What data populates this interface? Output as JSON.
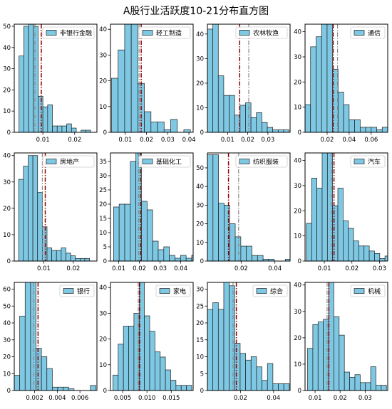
{
  "title": "A股行业活跃度10-21分布直方图",
  "colors": {
    "bar_fill": "#7ec8e3",
    "bar_edge": "#1f1f1f",
    "red_line": "#8b0000",
    "gray_line": "#808080",
    "legend_patch": "#7ec8e3"
  },
  "chart_data": [
    {
      "type": "histogram",
      "legend": "非银行金融",
      "xlim": [
        0.001,
        0.027
      ],
      "ylim": [
        0,
        51
      ],
      "xticks": [
        0.01,
        0.02
      ],
      "xtick_labels": [
        "0.01",
        "0.02"
      ],
      "yticks": [
        0,
        10,
        20,
        30,
        40,
        50
      ],
      "bin_start": 0.0025,
      "bin_width": 0.0015,
      "values": [
        36,
        50,
        51,
        50,
        17,
        12,
        13,
        3,
        3,
        3,
        4,
        2,
        0,
        1,
        1
      ],
      "red_line": 0.0095,
      "gray_line": 0.0075
    },
    {
      "type": "histogram",
      "legend": "轻工制造",
      "xlim": [
        0.003,
        0.042
      ],
      "ylim": [
        0,
        42
      ],
      "xticks": [
        0.01,
        0.02,
        0.03,
        0.04
      ],
      "xtick_labels": [
        "0.01",
        "0.02",
        "0.03",
        "0.04"
      ],
      "yticks": [
        0,
        10,
        20,
        30,
        40
      ],
      "bin_start": 0.0035,
      "bin_width": 0.0031,
      "values": [
        21,
        32,
        42,
        42,
        19,
        8,
        4,
        4,
        1,
        5,
        0,
        1,
        0
      ],
      "red_line": 0.0175,
      "gray_line": 0.0165
    },
    {
      "type": "histogram",
      "legend": "农林牧渔",
      "xlim": [
        0.0,
        0.041
      ],
      "ylim": [
        0,
        44
      ],
      "xticks": [
        0.01,
        0.02,
        0.03
      ],
      "xtick_labels": [
        "0.01",
        "0.02",
        "0.03"
      ],
      "yticks": [
        0,
        10,
        20,
        30,
        40
      ],
      "bin_start": 0.0,
      "bin_width": 0.0027,
      "values": [
        42,
        44,
        23,
        15,
        15,
        7,
        11,
        12,
        6,
        8,
        4,
        2,
        1,
        1,
        1
      ],
      "red_line": 0.016,
      "gray_line": 0.0205
    },
    {
      "type": "histogram",
      "legend": "通信",
      "xlim": [
        0.0,
        0.075
      ],
      "ylim": [
        0,
        43
      ],
      "xticks": [
        0.02,
        0.04,
        0.06
      ],
      "xtick_labels": [
        "0.02",
        "0.04",
        "0.06"
      ],
      "yticks": [
        0,
        10,
        20,
        30,
        40
      ],
      "bin_start": 0.0,
      "bin_width": 0.005,
      "values": [
        11,
        34,
        38,
        43,
        43,
        25,
        16,
        11,
        5,
        5,
        2,
        2,
        2,
        1,
        2
      ],
      "red_line": 0.0255,
      "gray_line": 0.0295
    },
    {
      "type": "histogram",
      "legend": "房地产",
      "xlim": [
        0.0,
        0.028
      ],
      "ylim": [
        0,
        41
      ],
      "xticks": [
        0.01,
        0.02
      ],
      "xtick_labels": [
        "0.01",
        "0.02"
      ],
      "yticks": [
        0,
        10,
        20,
        30,
        40
      ],
      "bin_start": 0.0015,
      "bin_width": 0.0016,
      "values": [
        31,
        36,
        40,
        40,
        26,
        13,
        5,
        4,
        4,
        5,
        3,
        2,
        1,
        1,
        1
      ],
      "red_line": 0.0105,
      "gray_line": 0.0095
    },
    {
      "type": "histogram",
      "legend": "基础化工",
      "xlim": [
        0.006,
        0.046
      ],
      "ylim": [
        0,
        38
      ],
      "xticks": [
        0.01,
        0.02,
        0.03,
        0.04
      ],
      "xtick_labels": [
        "0.01",
        "0.02",
        "0.03",
        "0.04"
      ],
      "yticks": [
        0,
        5,
        10,
        15,
        20,
        25,
        30,
        35
      ],
      "bin_start": 0.0075,
      "bin_width": 0.0027,
      "values": [
        19,
        20,
        20,
        35,
        38,
        21,
        18,
        7,
        4,
        5,
        2,
        1,
        2,
        1,
        2
      ],
      "red_line": 0.0205,
      "gray_line": 0.0195
    },
    {
      "type": "histogram",
      "legend": "纺织服装",
      "xlim": [
        0.0,
        0.049
      ],
      "ylim": [
        0,
        58
      ],
      "xticks": [
        0.02,
        0.04
      ],
      "xtick_labels": [
        "0.02",
        "0.04"
      ],
      "yticks": [
        0,
        10,
        20,
        30,
        40,
        50
      ],
      "bin_start": 0.0,
      "bin_width": 0.0033,
      "values": [
        57,
        57,
        31,
        30,
        20,
        13,
        8,
        8,
        3,
        3,
        1,
        1,
        0,
        0,
        1
      ],
      "red_line": 0.0125,
      "gray_line": 0.0185
    },
    {
      "type": "histogram",
      "legend": "汽车",
      "xlim": [
        0.003,
        0.033
      ],
      "ylim": [
        0,
        43
      ],
      "xticks": [
        0.01,
        0.02,
        0.03
      ],
      "xtick_labels": [
        "0.01",
        "0.02",
        "0.03"
      ],
      "yticks": [
        0,
        10,
        20,
        30,
        40
      ],
      "bin_start": 0.0035,
      "bin_width": 0.0019,
      "values": [
        15,
        33,
        29,
        43,
        43,
        22,
        29,
        16,
        13,
        8,
        6,
        6,
        4,
        3,
        1,
        2
      ],
      "red_line": 0.0135,
      "gray_line": 0.0125
    },
    {
      "type": "histogram",
      "legend": "银行",
      "xlim": [
        0.0002,
        0.0075
      ],
      "ylim": [
        0,
        64
      ],
      "xticks": [
        0.002,
        0.004,
        0.006
      ],
      "xtick_labels": [
        "0.002",
        "0.004",
        "0.006"
      ],
      "yticks": [
        0,
        10,
        20,
        30,
        40,
        50,
        60
      ],
      "bin_start": 0.0002,
      "bin_width": 0.00048,
      "values": [
        9,
        44,
        64,
        64,
        25,
        20,
        13,
        2,
        2,
        2,
        1,
        0,
        0,
        0,
        3
      ],
      "red_line": 0.0023,
      "gray_line": 0.0019
    },
    {
      "type": "histogram",
      "legend": "家电",
      "xlim": [
        0.0025,
        0.0195
      ],
      "ylim": [
        0,
        42
      ],
      "xticks": [
        0.005,
        0.01,
        0.015
      ],
      "xtick_labels": [
        "0.005",
        "0.010",
        "0.015"
      ],
      "yticks": [
        0,
        10,
        20,
        30,
        40
      ],
      "bin_start": 0.003,
      "bin_width": 0.00108,
      "values": [
        6,
        18,
        25,
        25,
        30,
        42,
        29,
        23,
        15,
        13,
        8,
        4,
        2,
        2,
        2
      ],
      "red_line": 0.0085,
      "gray_line": 0.0082
    },
    {
      "type": "histogram",
      "legend": "综合",
      "xlim": [
        0.0,
        0.05
      ],
      "ylim": [
        0,
        32
      ],
      "xticks": [
        0.02,
        0.04
      ],
      "xtick_labels": [
        "0.02",
        "0.04"
      ],
      "yticks": [
        0,
        5,
        10,
        15,
        20,
        25,
        30
      ],
      "bin_start": 0.0,
      "bin_width": 0.0033,
      "values": [
        24,
        26,
        24,
        32,
        31,
        14,
        11,
        9,
        10,
        7,
        3,
        8,
        2,
        2,
        2
      ],
      "red_line": 0.0175,
      "gray_line": 0.0155
    },
    {
      "type": "histogram",
      "legend": "机械",
      "xlim": [
        0.006,
        0.039
      ],
      "ylim": [
        0,
        41
      ],
      "xticks": [
        0.01,
        0.02,
        0.03
      ],
      "xtick_labels": [
        "0.01",
        "0.02",
        "0.03"
      ],
      "yticks": [
        0,
        10,
        20,
        30,
        40
      ],
      "bin_start": 0.007,
      "bin_width": 0.0021,
      "values": [
        16,
        25,
        26,
        27,
        41,
        28,
        21,
        7,
        5,
        6,
        3,
        3,
        9,
        2,
        2
      ],
      "red_line": 0.0155,
      "gray_line": 0.0148
    }
  ]
}
